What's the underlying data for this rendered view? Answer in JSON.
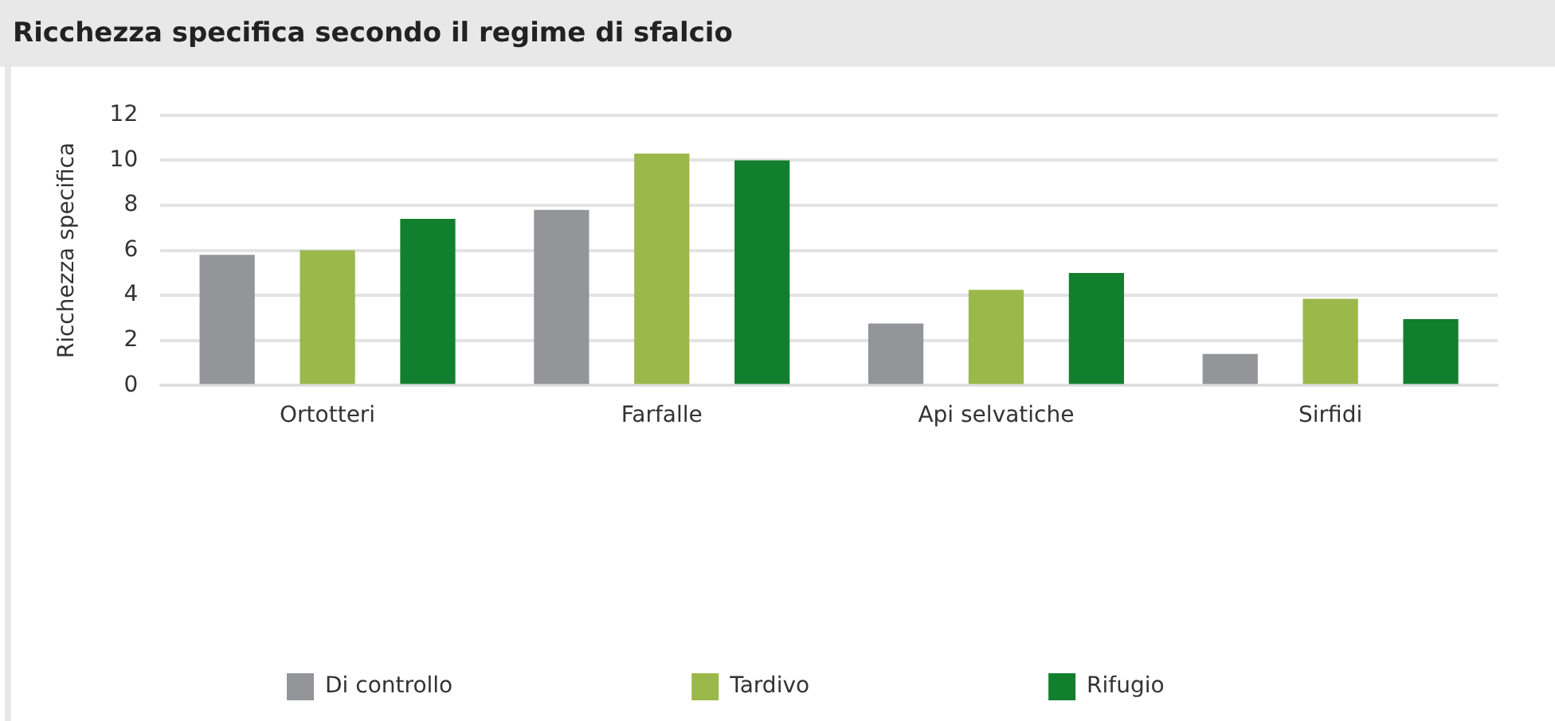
{
  "chart_data": {
    "type": "bar",
    "title": "Ricchezza specifica secondo il regime di sfalcio",
    "ylabel": "Ricchezza specifica",
    "categories": [
      "Ortotteri",
      "Farfalle",
      "Api selvatiche",
      "Sirfidi"
    ],
    "series": [
      {
        "name": "Di controllo",
        "color": "#939598",
        "values": [
          5.8,
          7.8,
          2.75,
          1.4
        ]
      },
      {
        "name": "Tardivo",
        "color": "#9bb84a",
        "values": [
          6.0,
          10.3,
          4.25,
          3.85
        ]
      },
      {
        "name": "Rifugio",
        "color": "#127f2f",
        "values": [
          7.4,
          10.0,
          5.0,
          2.95
        ]
      }
    ],
    "ylim": [
      0,
      12
    ],
    "yticks": [
      0,
      2,
      4,
      6,
      8,
      10,
      12
    ],
    "grid": "y",
    "legend": "bottom"
  }
}
